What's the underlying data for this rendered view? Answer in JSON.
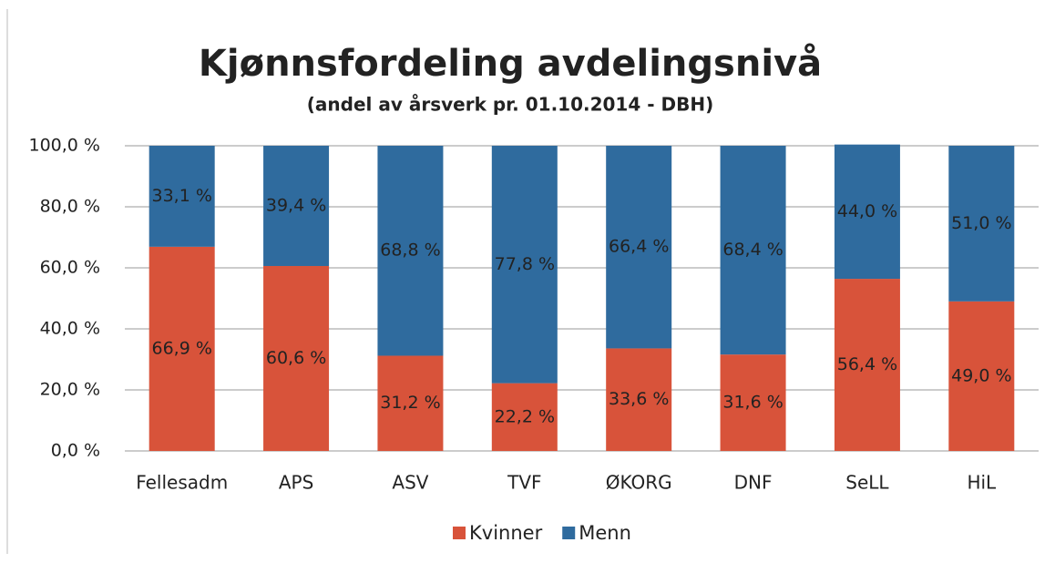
{
  "chart_data": {
    "type": "stacked_bar",
    "title": "Kjønnsfordeling avdelingsnivå",
    "subtitle": "(andel av årsverk pr. 01.10.2014 - DBH)",
    "categories": [
      "Fellesadm",
      "APS",
      "ASV",
      "TVF",
      "ØKORG",
      "DNF",
      "SeLL",
      "HiL"
    ],
    "series": [
      {
        "name": "Kvinner",
        "color": "#d8533a",
        "values": [
          66.9,
          60.6,
          31.2,
          22.2,
          33.6,
          31.6,
          56.4,
          49.0
        ],
        "value_labels": [
          "66,9 %",
          "60,6 %",
          "31,2 %",
          "22,2 %",
          "33,6 %",
          "31,6 %",
          "56,4 %",
          "49,0 %"
        ]
      },
      {
        "name": "Menn",
        "color": "#2f6b9e",
        "values": [
          33.1,
          39.4,
          68.8,
          77.8,
          66.4,
          68.4,
          44.0,
          51.0
        ],
        "value_labels": [
          "33,1 %",
          "39,4 %",
          "68,8 %",
          "77,8 %",
          "66,4 %",
          "68,4 %",
          "44,0 %",
          "51,0 %"
        ]
      }
    ],
    "ylim": [
      0,
      100
    ],
    "yticks": [
      {
        "value": 0,
        "label": "0,0 %"
      },
      {
        "value": 20,
        "label": "20,0 %"
      },
      {
        "value": 40,
        "label": "40,0 %"
      },
      {
        "value": 60,
        "label": "60,0 %"
      },
      {
        "value": 80,
        "label": "80,0 %"
      },
      {
        "value": 100,
        "label": "100,0 %"
      }
    ],
    "grid": true,
    "legend": "bottom"
  }
}
